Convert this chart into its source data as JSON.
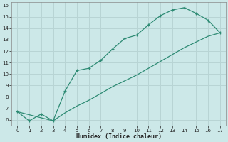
{
  "line1_x": [
    0,
    1,
    2,
    3,
    4,
    5,
    6,
    7,
    8,
    9,
    10,
    11,
    12,
    13,
    14,
    15,
    16,
    17
  ],
  "line1_y": [
    6.7,
    5.9,
    6.5,
    5.9,
    8.5,
    10.3,
    10.5,
    11.2,
    12.2,
    13.1,
    13.4,
    14.3,
    15.1,
    15.6,
    15.8,
    15.3,
    14.7,
    13.6
  ],
  "line2_x": [
    0,
    3,
    4,
    5,
    6,
    7,
    8,
    9,
    10,
    11,
    12,
    13,
    14,
    15,
    16,
    17
  ],
  "line2_y": [
    6.7,
    5.9,
    6.6,
    7.2,
    7.7,
    8.3,
    8.9,
    9.4,
    9.9,
    10.5,
    11.1,
    11.7,
    12.3,
    12.8,
    13.3,
    13.6
  ],
  "line_color": "#2e8b74",
  "bg_color": "#cce8e8",
  "grid_color": "#b8d4d4",
  "xlabel": "Humidex (Indice chaleur)",
  "xlim": [
    -0.5,
    17.5
  ],
  "ylim": [
    5.5,
    16.3
  ],
  "xticks": [
    0,
    1,
    2,
    3,
    4,
    5,
    6,
    7,
    8,
    9,
    10,
    11,
    12,
    13,
    14,
    15,
    16,
    17
  ],
  "yticks": [
    6,
    7,
    8,
    9,
    10,
    11,
    12,
    13,
    14,
    15,
    16
  ]
}
